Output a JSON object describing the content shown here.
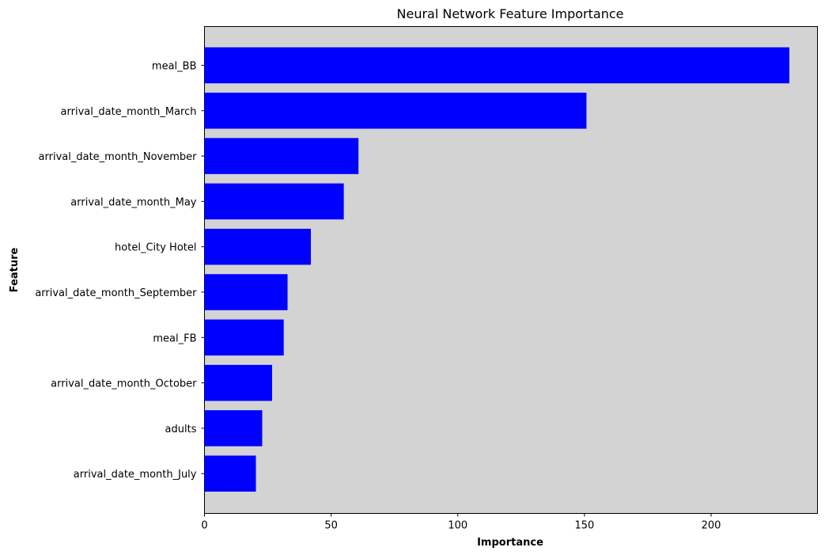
{
  "chart_data": {
    "type": "bar",
    "orientation": "horizontal",
    "title": "Neural Network Feature Importance",
    "xlabel": "Importance",
    "ylabel": "Feature",
    "categories": [
      "meal_BB",
      "arrival_date_month_March",
      "arrival_date_month_November",
      "arrival_date_month_May",
      "hotel_City Hotel",
      "arrival_date_month_September",
      "meal_FB",
      "arrival_date_month_October",
      "adults",
      "arrival_date_month_July"
    ],
    "values": [
      230.9,
      150.8,
      60.8,
      55.0,
      42.0,
      32.8,
      31.3,
      26.7,
      22.8,
      20.3
    ],
    "xlim": [
      0,
      242
    ],
    "xticks": [
      0,
      50,
      100,
      150,
      200
    ],
    "grid": false,
    "colors": {
      "bar": "#0000ff",
      "plot_background": "#d3d3d3",
      "figure_background": "#ffffff",
      "axes": "#000000"
    }
  }
}
